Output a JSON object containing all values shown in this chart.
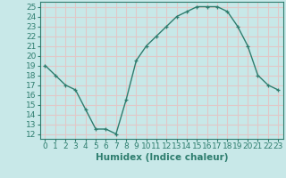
{
  "x": [
    0,
    1,
    2,
    3,
    4,
    5,
    6,
    7,
    8,
    9,
    10,
    11,
    12,
    13,
    14,
    15,
    16,
    17,
    18,
    19,
    20,
    21,
    22,
    23
  ],
  "y": [
    19,
    18,
    17,
    16.5,
    14.5,
    12.5,
    12.5,
    12,
    15.5,
    19.5,
    21,
    22,
    23,
    24,
    24.5,
    25,
    25,
    25,
    24.5,
    23,
    21,
    18,
    17,
    16.5
  ],
  "line_color": "#2e7d6e",
  "marker": "+",
  "bg_color": "#c8e8e8",
  "grid_color": "#e0c8c8",
  "xlabel": "Humidex (Indice chaleur)",
  "ylabel_ticks": [
    12,
    13,
    14,
    15,
    16,
    17,
    18,
    19,
    20,
    21,
    22,
    23,
    24,
    25
  ],
  "ylim": [
    11.5,
    25.5
  ],
  "xlim": [
    -0.5,
    23.5
  ],
  "xticks": [
    0,
    1,
    2,
    3,
    4,
    5,
    6,
    7,
    8,
    9,
    10,
    11,
    12,
    13,
    14,
    15,
    16,
    17,
    18,
    19,
    20,
    21,
    22,
    23
  ],
  "font_color": "#2e7d6e",
  "font_size": 6.5,
  "xlabel_fontsize": 7.5,
  "linewidth": 1.0,
  "markersize": 3.5,
  "markeredgewidth": 0.9
}
